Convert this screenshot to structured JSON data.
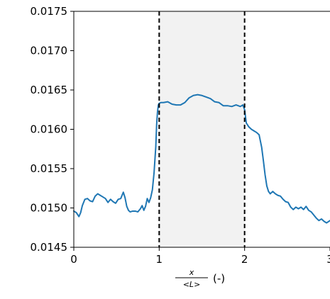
{
  "chart_data": {
    "type": "line",
    "title": "",
    "xlabel": {
      "numerator": "x",
      "denominator": "<L>",
      "suffix": "(-)"
    },
    "ylabel": "",
    "xlim": [
      0,
      3
    ],
    "ylim": [
      0.0145,
      0.0175
    ],
    "x_ticks": [
      {
        "value": 0,
        "label": "0"
      },
      {
        "value": 1,
        "label": "1"
      },
      {
        "value": 2,
        "label": "2"
      },
      {
        "value": 3,
        "label": "3"
      }
    ],
    "y_ticks": [
      {
        "value": 0.0145,
        "label": "0.0145"
      },
      {
        "value": 0.015,
        "label": "0.0150"
      },
      {
        "value": 0.0155,
        "label": "0.0155"
      },
      {
        "value": 0.016,
        "label": "0.0160"
      },
      {
        "value": 0.0165,
        "label": "0.0165"
      },
      {
        "value": 0.017,
        "label": "0.0170"
      },
      {
        "value": 0.0175,
        "label": "0.0175"
      }
    ],
    "shaded_region": {
      "x_start": 1,
      "x_end": 2,
      "color": "#f2f2f2"
    },
    "vlines": [
      {
        "x": 1,
        "style": "dashed",
        "color": "#000000"
      },
      {
        "x": 2,
        "style": "dashed",
        "color": "#000000"
      }
    ],
    "grid": false,
    "legend": "none",
    "series": [
      {
        "color": "#1f77b4",
        "x": [
          0,
          0.03,
          0.06,
          0.08,
          0.1,
          0.13,
          0.16,
          0.19,
          0.22,
          0.25,
          0.28,
          0.31,
          0.34,
          0.37,
          0.4,
          0.43,
          0.46,
          0.49,
          0.52,
          0.55,
          0.58,
          0.6,
          0.62,
          0.64,
          0.66,
          0.69,
          0.72,
          0.75,
          0.78,
          0.8,
          0.82,
          0.84,
          0.86,
          0.88,
          0.9,
          0.92,
          0.94,
          0.96,
          0.97,
          0.98,
          0.99,
          1.0,
          1.02,
          1.05,
          1.1,
          1.15,
          1.2,
          1.25,
          1.3,
          1.35,
          1.4,
          1.45,
          1.5,
          1.55,
          1.6,
          1.65,
          1.7,
          1.75,
          1.8,
          1.85,
          1.9,
          1.95,
          1.98,
          2.0,
          2.02,
          2.05,
          2.08,
          2.11,
          2.14,
          2.17,
          2.2,
          2.22,
          2.24,
          2.26,
          2.28,
          2.3,
          2.33,
          2.36,
          2.39,
          2.42,
          2.45,
          2.48,
          2.51,
          2.54,
          2.57,
          2.6,
          2.63,
          2.66,
          2.69,
          2.72,
          2.75,
          2.78,
          2.81,
          2.84,
          2.87,
          2.9,
          2.93,
          2.96,
          3.0
        ],
        "y": [
          0.01496,
          0.01494,
          0.01489,
          0.01494,
          0.01503,
          0.01511,
          0.01512,
          0.01509,
          0.01508,
          0.01515,
          0.01518,
          0.01516,
          0.01514,
          0.01512,
          0.01507,
          0.01511,
          0.01508,
          0.01506,
          0.01511,
          0.01512,
          0.0152,
          0.01513,
          0.01502,
          0.01497,
          0.01495,
          0.01496,
          0.01496,
          0.01495,
          0.01499,
          0.01503,
          0.01497,
          0.01502,
          0.01512,
          0.01507,
          0.01513,
          0.01523,
          0.01545,
          0.01578,
          0.01606,
          0.01622,
          0.01631,
          0.01633,
          0.01634,
          0.01634,
          0.01635,
          0.01632,
          0.01631,
          0.01631,
          0.01634,
          0.0164,
          0.01643,
          0.01644,
          0.01643,
          0.01641,
          0.01639,
          0.01635,
          0.01634,
          0.0163,
          0.0163,
          0.01629,
          0.01631,
          0.01629,
          0.01631,
          0.01625,
          0.01608,
          0.01603,
          0.016,
          0.01598,
          0.01596,
          0.01593,
          0.01577,
          0.0156,
          0.01542,
          0.01528,
          0.01521,
          0.01518,
          0.01521,
          0.01518,
          0.01516,
          0.01515,
          0.01511,
          0.01508,
          0.01507,
          0.01501,
          0.01498,
          0.01501,
          0.01499,
          0.01501,
          0.01498,
          0.01502,
          0.01497,
          0.01495,
          0.01491,
          0.01487,
          0.01484,
          0.01486,
          0.01483,
          0.01481,
          0.01484
        ]
      }
    ]
  }
}
